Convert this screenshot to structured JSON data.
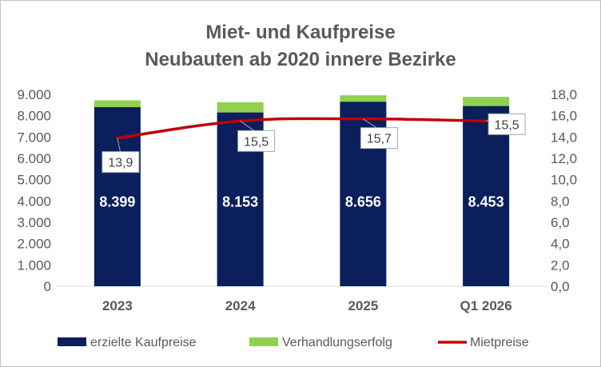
{
  "chart_data": {
    "type": "bar",
    "title": "Miet- und Kaufpreise",
    "subtitle": "Neubauten ab 2020 innere Bezirke",
    "categories": [
      "2023",
      "2024",
      "2025",
      "Q1 2026"
    ],
    "series": [
      {
        "name": "erzielte Kaufpreise",
        "type": "bar",
        "stack": "total",
        "axis": "left",
        "color": "#0a1f5c",
        "values": [
          8399,
          8153,
          8656,
          8453
        ],
        "labels": [
          "8.399",
          "8.153",
          "8.656",
          "8.453"
        ]
      },
      {
        "name": "Verhandlungserfolg",
        "type": "bar",
        "stack": "total",
        "axis": "left",
        "color": "#92d050",
        "values": [
          320,
          480,
          300,
          430
        ]
      },
      {
        "name": "Mietpreise",
        "type": "line",
        "axis": "right",
        "color": "#c00000",
        "values": [
          13.9,
          15.5,
          15.7,
          15.5
        ],
        "labels": [
          "13,9",
          "15,5",
          "15,7",
          "15,5"
        ]
      }
    ],
    "y_left": {
      "min": 0,
      "max": 9000,
      "ticks": [
        "0",
        "1.000",
        "2.000",
        "3.000",
        "4.000",
        "5.000",
        "6.000",
        "7.000",
        "8.000",
        "9.000"
      ]
    },
    "y_right": {
      "min": 0,
      "max": 18,
      "ticks": [
        "0,0",
        "2,0",
        "4,0",
        "6,0",
        "8,0",
        "10,0",
        "12,0",
        "14,0",
        "16,0",
        "18,0"
      ]
    },
    "grid": false,
    "legend": "bottom"
  }
}
